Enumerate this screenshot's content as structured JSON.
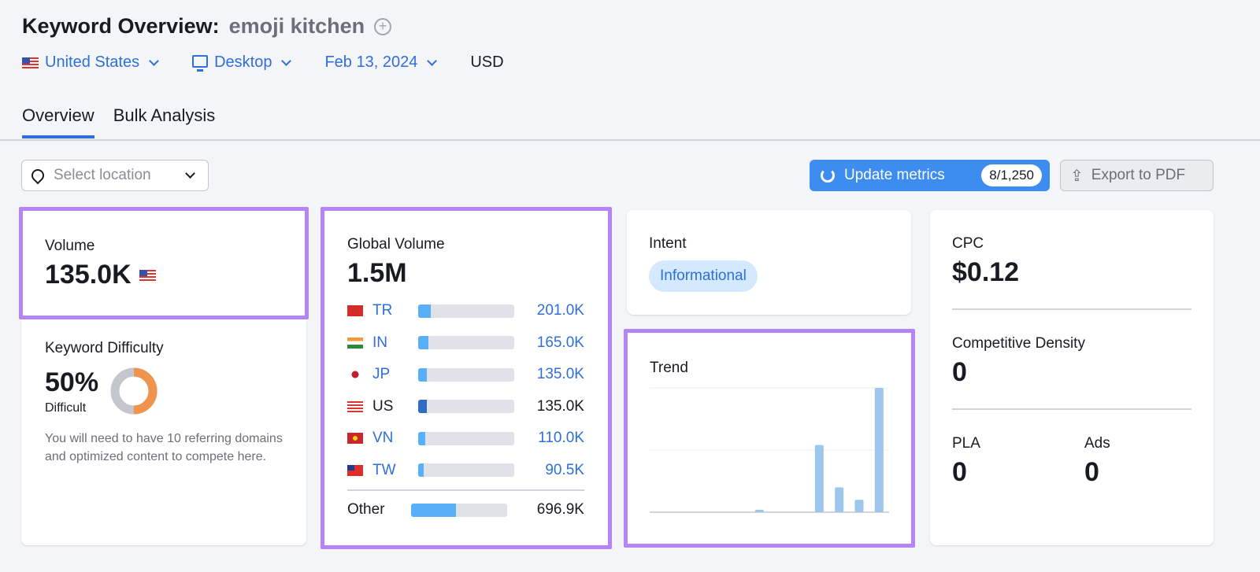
{
  "header": {
    "title": "Keyword Overview:",
    "keyword": "emoji kitchen",
    "add_icon": "plus-circle-icon"
  },
  "filters": {
    "country": "United States",
    "device": "Desktop",
    "date": "Feb 13, 2024",
    "currency": "USD"
  },
  "tabs": [
    {
      "label": "Overview",
      "active": true
    },
    {
      "label": "Bulk Analysis",
      "active": false
    }
  ],
  "toolbar": {
    "location_placeholder": "Select location",
    "update_label": "Update metrics",
    "update_count": "8/1,250",
    "export_label": "Export to PDF"
  },
  "colors": {
    "accent": "#2e6fd8",
    "highlight": "#b585f7",
    "button": "#3d8cf0",
    "bar": "#57b0f8",
    "bar_selected": "#2d6bc7",
    "trend_bar": "#9dc6ec"
  },
  "volume": {
    "label": "Volume",
    "value": "135.0K"
  },
  "kd": {
    "label": "Keyword Difficulty",
    "value": "50%",
    "level": "Difficult",
    "percent": 50,
    "note": "You will need to have 10 referring domains and optimized content to compete here."
  },
  "global": {
    "label": "Global Volume",
    "value": "1.5M",
    "rows": [
      {
        "code": "TR",
        "value": "201.0K",
        "share": 0.134,
        "link": true
      },
      {
        "code": "IN",
        "value": "165.0K",
        "share": 0.11,
        "link": true
      },
      {
        "code": "JP",
        "value": "135.0K",
        "share": 0.09,
        "link": true
      },
      {
        "code": "US",
        "value": "135.0K",
        "share": 0.09,
        "link": false
      },
      {
        "code": "VN",
        "value": "110.0K",
        "share": 0.073,
        "link": true
      },
      {
        "code": "TW",
        "value": "90.5K",
        "share": 0.06,
        "link": true
      }
    ],
    "other": {
      "label": "Other",
      "value": "696.9K",
      "share": 0.465
    }
  },
  "intent": {
    "label": "Intent",
    "value": "Informational"
  },
  "trend": {
    "label": "Trend",
    "values": [
      0,
      0,
      0,
      0,
      0,
      0.02,
      0,
      0,
      0.54,
      0.2,
      0.1,
      1
    ]
  },
  "cpc": {
    "label": "CPC",
    "value": "$0.12"
  },
  "density": {
    "label": "Competitive Density",
    "value": "0"
  },
  "pla": {
    "label": "PLA",
    "value": "0"
  },
  "ads": {
    "label": "Ads",
    "value": "0"
  }
}
